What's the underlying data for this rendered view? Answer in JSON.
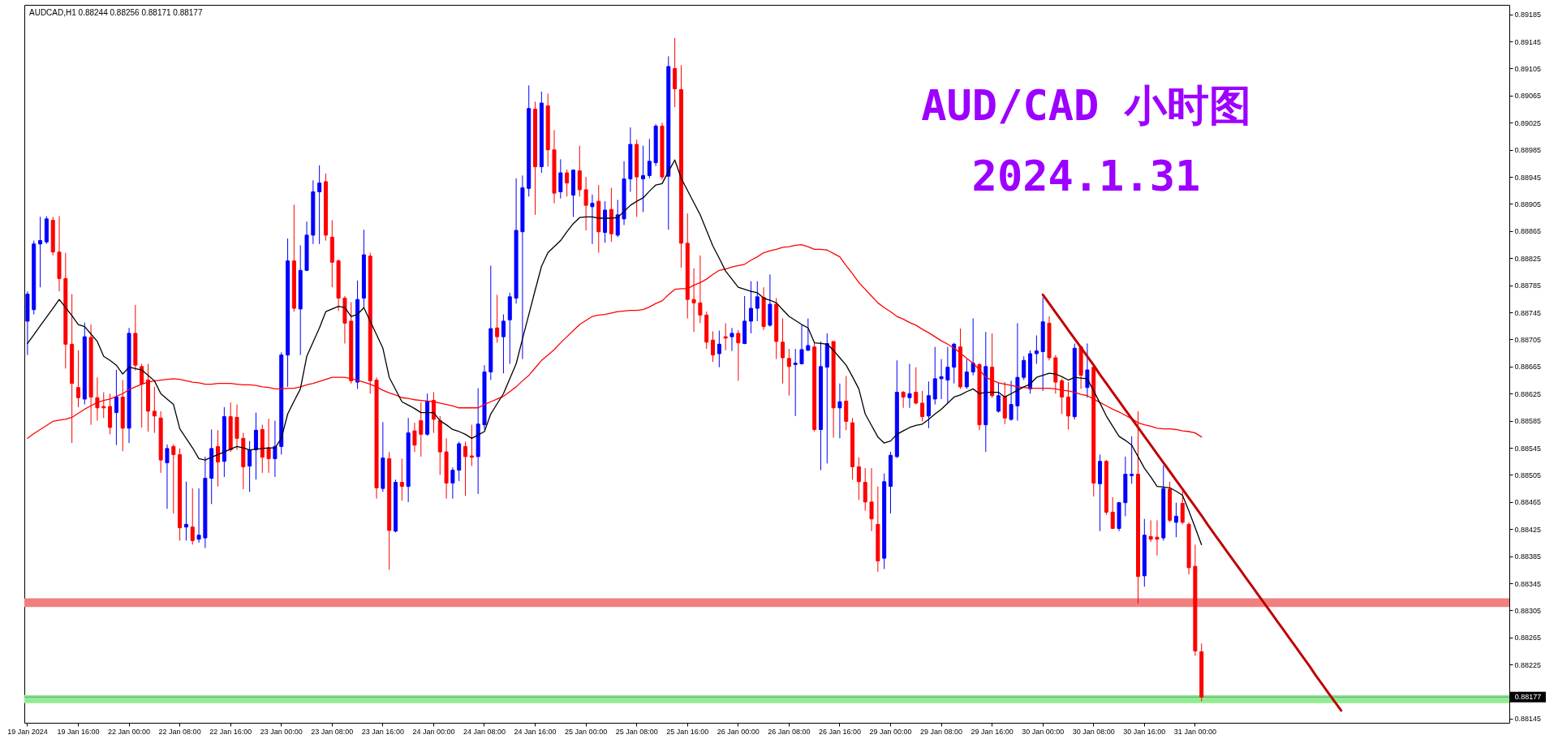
{
  "chart_data": {
    "type": "candlestick",
    "title": "AUD/CAD 小时图",
    "subtitle": "2024.1.31",
    "annotations": [
      "AUDCAD,H1 0.88244 0.88256 0.88171 0.88177"
    ],
    "categories": [
      "19 Jan 2024",
      null,
      null,
      null,
      null,
      null,
      null,
      null,
      "19 Jan 16:00",
      null,
      null,
      null,
      null,
      null,
      null,
      null,
      "22 Jan 00:00",
      null,
      null,
      null,
      null,
      null,
      null,
      null,
      "22 Jan 08:00",
      null,
      null,
      null,
      null,
      null,
      null,
      null,
      "22 Jan 16:00",
      null,
      null,
      null,
      null,
      null,
      null,
      null,
      "23 Jan 00:00",
      null,
      null,
      null,
      null,
      null,
      null,
      null,
      "23 Jan 08:00",
      null,
      null,
      null,
      null,
      null,
      null,
      null,
      "23 Jan 16:00",
      null,
      null,
      null,
      null,
      null,
      null,
      null,
      "24 Jan 00:00",
      null,
      null,
      null,
      null,
      null,
      null,
      null,
      "24 Jan 08:00",
      null,
      null,
      null,
      null,
      null,
      null,
      null,
      "24 Jan 16:00",
      null,
      null,
      null,
      null,
      null,
      null,
      null,
      "25 Jan 00:00",
      null,
      null,
      null,
      null,
      null,
      null,
      null,
      "25 Jan 08:00",
      null,
      null,
      null,
      null,
      null,
      null,
      null,
      "25 Jan 16:00",
      null,
      null,
      null,
      null,
      null,
      null,
      null,
      "26 Jan 00:00",
      null,
      null,
      null,
      null,
      null,
      null,
      null,
      "26 Jan 08:00",
      null,
      null,
      null,
      null,
      null,
      null,
      null,
      "26 Jan 16:00",
      null,
      null,
      null,
      null,
      null,
      null,
      null,
      "29 Jan 00:00",
      null,
      null,
      null,
      null,
      null,
      null,
      null,
      "29 Jan 08:00",
      null,
      null,
      null,
      null,
      null,
      null,
      null,
      "29 Jan 16:00",
      null,
      null,
      null,
      null,
      null,
      null,
      null,
      "30 Jan 00:00",
      null,
      null,
      null,
      null,
      null,
      null,
      null,
      "30 Jan 08:00",
      null,
      null,
      null,
      null,
      null,
      null,
      null,
      "30 Jan 16:00",
      null,
      null,
      null,
      null,
      null,
      null,
      null,
      "31 Jan 00:00",
      null,
      null,
      null,
      null,
      null,
      null,
      null,
      null,
      null,
      null,
      null,
      null,
      null,
      null,
      null,
      null,
      null,
      null,
      null,
      null,
      null,
      null,
      null,
      null,
      null,
      null,
      null,
      null,
      null,
      null,
      null,
      null,
      null,
      null,
      null,
      null,
      null,
      null,
      null,
      null,
      null,
      null,
      null,
      null,
      null,
      null,
      null,
      null,
      null
    ],
    "ohlc": [
      [
        0.88732,
        0.88776,
        0.88682,
        0.88772
      ],
      [
        0.88749,
        0.88851,
        0.88742,
        0.88846
      ],
      [
        0.88846,
        0.88886,
        0.88782,
        0.88851
      ],
      [
        0.88849,
        0.88887,
        0.88846,
        0.88883
      ],
      [
        0.88881,
        0.88886,
        0.88829,
        0.88834
      ],
      [
        0.88834,
        0.88887,
        0.88776,
        0.88795
      ],
      [
        0.88795,
        0.88833,
        0.88662,
        0.88698
      ],
      [
        0.88698,
        0.88772,
        0.88552,
        0.8864
      ],
      [
        0.88634,
        0.88689,
        0.88605,
        0.88619
      ],
      [
        0.88617,
        0.8873,
        0.88609,
        0.88709
      ],
      [
        0.88708,
        0.88727,
        0.88579,
        0.8862
      ],
      [
        0.88619,
        0.88649,
        0.88585,
        0.88604
      ],
      [
        0.88606,
        0.88627,
        0.88589,
        0.88604
      ],
      [
        0.88606,
        0.88625,
        0.88565,
        0.88575
      ],
      [
        0.88597,
        0.8866,
        0.88549,
        0.8862
      ],
      [
        0.8862,
        0.88645,
        0.8854,
        0.88574
      ],
      [
        0.88574,
        0.88722,
        0.88552,
        0.88714
      ],
      [
        0.88714,
        0.88756,
        0.88659,
        0.88667
      ],
      [
        0.88665,
        0.88669,
        0.88575,
        0.88639
      ],
      [
        0.88645,
        0.88669,
        0.88569,
        0.88599
      ],
      [
        0.88599,
        0.88635,
        0.88567,
        0.88592
      ],
      [
        0.88589,
        0.88599,
        0.88508,
        0.88527
      ],
      [
        0.88523,
        0.8855,
        0.88455,
        0.88544
      ],
      [
        0.88547,
        0.8855,
        0.88448,
        0.88535
      ],
      [
        0.88535,
        0.88544,
        0.88408,
        0.88427
      ],
      [
        0.88428,
        0.88495,
        0.88408,
        0.88432
      ],
      [
        0.88428,
        0.88485,
        0.88402,
        0.88408
      ],
      [
        0.8841,
        0.88485,
        0.88405,
        0.88416
      ],
      [
        0.88412,
        0.88532,
        0.88397,
        0.885
      ],
      [
        0.885,
        0.88572,
        0.88462,
        0.88544
      ],
      [
        0.88547,
        0.88571,
        0.88488,
        0.88524
      ],
      [
        0.88525,
        0.88605,
        0.88502,
        0.88591
      ],
      [
        0.88591,
        0.88612,
        0.88539,
        0.88542
      ],
      [
        0.8859,
        0.88609,
        0.88542,
        0.88559
      ],
      [
        0.88559,
        0.88567,
        0.88484,
        0.88517
      ],
      [
        0.88518,
        0.88555,
        0.8848,
        0.88542
      ],
      [
        0.88542,
        0.88597,
        0.88498,
        0.88571
      ],
      [
        0.88572,
        0.88579,
        0.88508,
        0.88531
      ],
      [
        0.88545,
        0.88588,
        0.88508,
        0.88529
      ],
      [
        0.88529,
        0.88585,
        0.88502,
        0.88547
      ],
      [
        0.88547,
        0.88686,
        0.88535,
        0.88682
      ],
      [
        0.88682,
        0.88854,
        0.88635,
        0.88821
      ],
      [
        0.88821,
        0.88904,
        0.88746,
        0.88751
      ],
      [
        0.8875,
        0.88844,
        0.88682,
        0.88807
      ],
      [
        0.88807,
        0.88879,
        0.88806,
        0.88859
      ],
      [
        0.88859,
        0.8894,
        0.88846,
        0.88923
      ],
      [
        0.88923,
        0.88962,
        0.88846,
        0.88936
      ],
      [
        0.88938,
        0.8895,
        0.88851,
        0.88859
      ],
      [
        0.88856,
        0.88881,
        0.88782,
        0.88819
      ],
      [
        0.88821,
        0.88823,
        0.88747,
        0.88766
      ],
      [
        0.88766,
        0.88769,
        0.88699,
        0.88729
      ],
      [
        0.88732,
        0.8876,
        0.8864,
        0.88644
      ],
      [
        0.88642,
        0.88792,
        0.88632,
        0.88764
      ],
      [
        0.88766,
        0.88867,
        0.88752,
        0.8883
      ],
      [
        0.88828,
        0.88833,
        0.88625,
        0.88644
      ],
      [
        0.88645,
        0.88649,
        0.8847,
        0.88486
      ],
      [
        0.88485,
        0.88583,
        0.8848,
        0.8853
      ],
      [
        0.88529,
        0.88539,
        0.88365,
        0.88423
      ],
      [
        0.88422,
        0.88498,
        0.8842,
        0.88494
      ],
      [
        0.88494,
        0.88529,
        0.88467,
        0.88488
      ],
      [
        0.88488,
        0.88589,
        0.88465,
        0.88567
      ],
      [
        0.8857,
        0.88582,
        0.88539,
        0.88549
      ],
      [
        0.88585,
        0.88612,
        0.88532,
        0.88565
      ],
      [
        0.88565,
        0.88625,
        0.88563,
        0.88614
      ],
      [
        0.88615,
        0.88627,
        0.88567,
        0.88587
      ],
      [
        0.88585,
        0.88592,
        0.88505,
        0.88539
      ],
      [
        0.88539,
        0.88559,
        0.8847,
        0.88493
      ],
      [
        0.88493,
        0.88516,
        0.8847,
        0.88512
      ],
      [
        0.88512,
        0.88554,
        0.88496,
        0.88551
      ],
      [
        0.88547,
        0.88554,
        0.88474,
        0.88532
      ],
      [
        0.88533,
        0.88579,
        0.88518,
        0.88531
      ],
      [
        0.88532,
        0.88633,
        0.88477,
        0.8858
      ],
      [
        0.88579,
        0.88667,
        0.88572,
        0.88657
      ],
      [
        0.88657,
        0.88814,
        0.88645,
        0.88721
      ],
      [
        0.88722,
        0.88771,
        0.887,
        0.88709
      ],
      [
        0.88709,
        0.88742,
        0.88655,
        0.88732
      ],
      [
        0.88734,
        0.88774,
        0.88669,
        0.88768
      ],
      [
        0.88766,
        0.88943,
        0.88758,
        0.88866
      ],
      [
        0.88864,
        0.88947,
        0.88676,
        0.88929
      ],
      [
        0.88928,
        0.8908,
        0.88916,
        0.89046
      ],
      [
        0.89045,
        0.89056,
        0.88889,
        0.8896
      ],
      [
        0.8896,
        0.89071,
        0.88951,
        0.89054
      ],
      [
        0.8905,
        0.89068,
        0.8896,
        0.88985
      ],
      [
        0.88985,
        0.89014,
        0.88906,
        0.88921
      ],
      [
        0.88923,
        0.88971,
        0.88913,
        0.88951
      ],
      [
        0.88951,
        0.88956,
        0.88916,
        0.88936
      ],
      [
        0.88918,
        0.88956,
        0.88886,
        0.88955
      ],
      [
        0.88954,
        0.88991,
        0.88916,
        0.88926
      ],
      [
        0.88926,
        0.88945,
        0.88866,
        0.88903
      ],
      [
        0.88901,
        0.88919,
        0.88846,
        0.88906
      ],
      [
        0.88909,
        0.88933,
        0.88833,
        0.88864
      ],
      [
        0.88863,
        0.88909,
        0.88848,
        0.88896
      ],
      [
        0.88897,
        0.88929,
        0.88849,
        0.88861
      ],
      [
        0.88859,
        0.88911,
        0.88856,
        0.88889
      ],
      [
        0.88883,
        0.88968,
        0.88874,
        0.88942
      ],
      [
        0.88942,
        0.89018,
        0.88923,
        0.88993
      ],
      [
        0.88993,
        0.89,
        0.88886,
        0.88945
      ],
      [
        0.88942,
        0.88991,
        0.88893,
        0.88947
      ],
      [
        0.88947,
        0.89001,
        0.88943,
        0.88968
      ],
      [
        0.88966,
        0.89023,
        0.88961,
        0.8902
      ],
      [
        0.8902,
        0.89025,
        0.88941,
        0.88945
      ],
      [
        0.88946,
        0.89123,
        0.88867,
        0.89108
      ],
      [
        0.89105,
        0.8915,
        0.89048,
        0.89075
      ],
      [
        0.89074,
        0.8911,
        0.88811,
        0.88847
      ],
      [
        0.88847,
        0.88891,
        0.88736,
        0.88764
      ],
      [
        0.88764,
        0.8881,
        0.88716,
        0.88759
      ],
      [
        0.88759,
        0.88829,
        0.88729,
        0.88741
      ],
      [
        0.88741,
        0.88746,
        0.88691,
        0.88701
      ],
      [
        0.88704,
        0.88717,
        0.88672,
        0.88682
      ],
      [
        0.88684,
        0.88718,
        0.88664,
        0.88698
      ],
      [
        0.88709,
        0.88729,
        0.88689,
        0.88707
      ],
      [
        0.88709,
        0.88722,
        0.88688,
        0.88714
      ],
      [
        0.88714,
        0.88719,
        0.88644,
        0.887
      ],
      [
        0.88699,
        0.88769,
        0.88698,
        0.88732
      ],
      [
        0.88732,
        0.88791,
        0.88714,
        0.88751
      ],
      [
        0.88751,
        0.88791,
        0.88732,
        0.88768
      ],
      [
        0.88767,
        0.88782,
        0.88719,
        0.88724
      ],
      [
        0.88726,
        0.88801,
        0.88724,
        0.88757
      ],
      [
        0.88757,
        0.88766,
        0.88676,
        0.88702
      ],
      [
        0.88701,
        0.88736,
        0.8864,
        0.88678
      ],
      [
        0.88677,
        0.88691,
        0.88622,
        0.88665
      ],
      [
        0.88668,
        0.88691,
        0.88592,
        0.8867
      ],
      [
        0.88669,
        0.88726,
        0.88668,
        0.8869
      ],
      [
        0.88689,
        0.88736,
        0.88688,
        0.88696
      ],
      [
        0.88694,
        0.887,
        0.88569,
        0.88572
      ],
      [
        0.88572,
        0.88702,
        0.88512,
        0.88665
      ],
      [
        0.88664,
        0.88714,
        0.88522,
        0.88699
      ],
      [
        0.88702,
        0.88702,
        0.8856,
        0.88604
      ],
      [
        0.88604,
        0.8864,
        0.88559,
        0.88613
      ],
      [
        0.88614,
        0.88651,
        0.88571,
        0.88584
      ],
      [
        0.88582,
        0.88589,
        0.88498,
        0.88517
      ],
      [
        0.88517,
        0.88531,
        0.88468,
        0.88495
      ],
      [
        0.88494,
        0.88515,
        0.88452,
        0.88465
      ],
      [
        0.88465,
        0.88515,
        0.88422,
        0.8844
      ],
      [
        0.88432,
        0.88488,
        0.88362,
        0.88378
      ],
      [
        0.88382,
        0.88507,
        0.88366,
        0.88495
      ],
      [
        0.88488,
        0.88539,
        0.88448,
        0.88534
      ],
      [
        0.88532,
        0.88674,
        0.8853,
        0.88627
      ],
      [
        0.88627,
        0.88629,
        0.88604,
        0.8862
      ],
      [
        0.88619,
        0.88669,
        0.88604,
        0.88625
      ],
      [
        0.88627,
        0.88664,
        0.88609,
        0.88611
      ],
      [
        0.88611,
        0.88629,
        0.88584,
        0.88591
      ],
      [
        0.88592,
        0.88643,
        0.88574,
        0.88622
      ],
      [
        0.88617,
        0.88694,
        0.88609,
        0.88647
      ],
      [
        0.88647,
        0.88676,
        0.88617,
        0.8865
      ],
      [
        0.88645,
        0.88694,
        0.88611,
        0.88664
      ],
      [
        0.88664,
        0.887,
        0.8864,
        0.88698
      ],
      [
        0.88694,
        0.88721,
        0.88632,
        0.88635
      ],
      [
        0.88635,
        0.88676,
        0.88632,
        0.88657
      ],
      [
        0.88657,
        0.88736,
        0.88652,
        0.8867
      ],
      [
        0.88668,
        0.8867,
        0.88571,
        0.88579
      ],
      [
        0.88579,
        0.88716,
        0.88539,
        0.88665
      ],
      [
        0.88664,
        0.88714,
        0.88619,
        0.88622
      ],
      [
        0.88599,
        0.88641,
        0.88597,
        0.88622
      ],
      [
        0.88621,
        0.88642,
        0.8858,
        0.88589
      ],
      [
        0.88587,
        0.88644,
        0.88585,
        0.88609
      ],
      [
        0.88607,
        0.88729,
        0.88585,
        0.88649
      ],
      [
        0.88649,
        0.8868,
        0.88645,
        0.88674
      ],
      [
        0.88632,
        0.88689,
        0.88625,
        0.88684
      ],
      [
        0.88684,
        0.88711,
        0.88669,
        0.88688
      ],
      [
        0.88687,
        0.88767,
        0.88629,
        0.88731
      ],
      [
        0.88729,
        0.88739,
        0.88674,
        0.88678
      ],
      [
        0.88678,
        0.88682,
        0.88625,
        0.88642
      ],
      [
        0.88644,
        0.88647,
        0.88595,
        0.8862
      ],
      [
        0.8862,
        0.88642,
        0.88572,
        0.88592
      ],
      [
        0.88591,
        0.88699,
        0.88587,
        0.88692
      ],
      [
        0.88694,
        0.88696,
        0.88632,
        0.88652
      ],
      [
        0.88634,
        0.88699,
        0.88619,
        0.8866
      ],
      [
        0.88664,
        0.88669,
        0.88473,
        0.88493
      ],
      [
        0.88492,
        0.88535,
        0.88422,
        0.88525
      ],
      [
        0.88525,
        0.88527,
        0.88446,
        0.8845
      ],
      [
        0.8845,
        0.88472,
        0.88425,
        0.88426
      ],
      [
        0.88426,
        0.88465,
        0.88422,
        0.88464
      ],
      [
        0.88464,
        0.88532,
        0.88444,
        0.88506
      ],
      [
        0.88504,
        0.88562,
        0.88492,
        0.88506
      ],
      [
        0.88506,
        0.88599,
        0.88315,
        0.88355
      ],
      [
        0.88356,
        0.8844,
        0.8834,
        0.88416
      ],
      [
        0.88414,
        0.88438,
        0.88406,
        0.8841
      ],
      [
        0.88413,
        0.88438,
        0.88386,
        0.8841
      ],
      [
        0.88412,
        0.88519,
        0.88408,
        0.88485
      ],
      [
        0.88484,
        0.88495,
        0.88435,
        0.88438
      ],
      [
        0.88435,
        0.88464,
        0.88413,
        0.88444
      ],
      [
        0.88463,
        0.88482,
        0.88432,
        0.88435
      ],
      [
        0.88432,
        0.88435,
        0.88358,
        0.88368
      ],
      [
        0.8837,
        0.88402,
        0.88238,
        0.88245
      ],
      [
        0.88244,
        0.88256,
        0.88171,
        0.88177
      ],
      null,
      null,
      null,
      null,
      null,
      null,
      null,
      null,
      null,
      null,
      null,
      null,
      null,
      null,
      null,
      null,
      null,
      null,
      null,
      null,
      null,
      null,
      null,
      null,
      null,
      null,
      null,
      null,
      null,
      null,
      null,
      null,
      null,
      null,
      null,
      null,
      null,
      null,
      null,
      null,
      null,
      null,
      null,
      null,
      null,
      null,
      null,
      null
    ],
    "colors": [
      "#0000ff",
      "#0000ff",
      "#0000ff",
      "#0000ff",
      "#ff0000",
      "#ff0000",
      "#ff0000",
      "#ff0000",
      "#ff0000",
      "#0000ff",
      "#ff0000",
      "#ff0000",
      "#ff0000",
      "#ff0000",
      "#0000ff",
      "#ff0000",
      "#0000ff",
      "#ff0000",
      "#ff0000",
      "#ff0000",
      "#ff0000",
      "#ff0000",
      "#0000ff",
      "#ff0000",
      "#ff0000",
      "#0000ff",
      "#ff0000",
      "#0000ff",
      "#0000ff",
      "#0000ff",
      "#ff0000",
      "#0000ff",
      "#ff0000",
      "#ff0000",
      "#ff0000",
      "#0000ff",
      "#0000ff",
      "#ff0000",
      "#ff0000",
      "#0000ff",
      "#0000ff",
      "#0000ff",
      "#ff0000",
      "#0000ff",
      "#0000ff",
      "#0000ff",
      "#0000ff",
      "#ff0000",
      "#ff0000",
      "#ff0000",
      "#ff0000",
      "#ff0000",
      "#0000ff",
      "#0000ff",
      "#ff0000",
      "#ff0000",
      "#0000ff",
      "#ff0000",
      "#0000ff",
      "#ff0000",
      "#0000ff",
      "#ff0000",
      "#ff0000",
      "#0000ff",
      "#ff0000",
      "#ff0000",
      "#ff0000",
      "#0000ff",
      "#0000ff",
      "#ff0000",
      "#ff0000",
      "#0000ff",
      "#0000ff",
      "#0000ff",
      "#ff0000",
      "#0000ff",
      "#0000ff",
      "#0000ff",
      "#0000ff",
      "#0000ff",
      "#ff0000",
      "#0000ff",
      "#ff0000",
      "#ff0000",
      "#0000ff",
      "#ff0000",
      "#0000ff",
      "#ff0000",
      "#ff0000",
      "#0000ff",
      "#ff0000",
      "#0000ff",
      "#ff0000",
      "#0000ff",
      "#0000ff",
      "#0000ff",
      "#ff0000",
      "#0000ff",
      "#0000ff",
      "#0000ff",
      "#ff0000",
      "#0000ff",
      "#ff0000",
      "#ff0000",
      "#ff0000",
      "#ff0000",
      "#ff0000",
      "#ff0000",
      "#ff0000",
      "#0000ff",
      "#ff0000",
      "#0000ff",
      "#ff0000",
      "#0000ff",
      "#0000ff",
      "#0000ff",
      "#ff0000",
      "#0000ff",
      "#ff0000",
      "#ff0000",
      "#ff0000",
      "#0000ff",
      "#0000ff",
      "#0000ff",
      "#ff0000",
      "#0000ff",
      "#0000ff",
      "#ff0000",
      "#0000ff",
      "#ff0000",
      "#ff0000",
      "#ff0000",
      "#ff0000",
      "#ff0000",
      "#ff0000",
      "#0000ff",
      "#0000ff",
      "#0000ff",
      "#ff0000",
      "#0000ff",
      "#ff0000",
      "#ff0000",
      "#0000ff",
      "#0000ff",
      "#0000ff",
      "#0000ff",
      "#0000ff",
      "#ff0000",
      "#0000ff",
      "#0000ff",
      "#ff0000",
      "#0000ff",
      "#ff0000",
      "#0000ff",
      "#ff0000",
      "#0000ff",
      "#0000ff",
      "#0000ff",
      "#0000ff",
      "#0000ff",
      "#0000ff",
      "#ff0000",
      "#ff0000",
      "#ff0000",
      "#ff0000",
      "#0000ff",
      "#ff0000",
      "#0000ff",
      "#ff0000",
      "#0000ff",
      "#ff0000",
      "#ff0000",
      "#0000ff",
      "#0000ff",
      "#0000ff",
      "#ff0000",
      "#0000ff",
      "#ff0000",
      "#ff0000",
      "#0000ff",
      "#ff0000",
      "#0000ff",
      "#ff0000",
      "#ff0000",
      "#ff0000",
      "#ff0000",
      null,
      null,
      null,
      null,
      null,
      null,
      null,
      null,
      null,
      null,
      null,
      null,
      null,
      null,
      null,
      null,
      null,
      null,
      null,
      null,
      null,
      null,
      null,
      null,
      null,
      null,
      null,
      null,
      null,
      null,
      null,
      null,
      null,
      null,
      null,
      null,
      null,
      null,
      null,
      null,
      null,
      null,
      null,
      null,
      null,
      null,
      null,
      null
    ],
    "ylim": [
      0.88139,
      0.89199
    ],
    "yticks": [
      0.88145,
      0.88225,
      0.88265,
      0.88305,
      0.88345,
      0.88385,
      0.88425,
      0.88465,
      0.88505,
      0.88545,
      0.88585,
      0.88625,
      0.88665,
      0.88705,
      0.88745,
      0.88785,
      0.88825,
      0.88865,
      0.88905,
      0.88945,
      0.88985,
      0.89025,
      0.89065,
      0.89105,
      0.89145,
      0.89185
    ],
    "series": [
      {
        "type": "line",
        "color": "#ff0000",
        "values": [
          0.88559,
          0.88566,
          0.88572,
          0.88578,
          0.88584,
          0.88586,
          0.88587,
          0.8859,
          0.88596,
          0.88602,
          0.88607,
          0.88612,
          0.88615,
          0.88617,
          0.88621,
          0.88625,
          0.88631,
          0.88635,
          0.88639,
          0.88642,
          0.88644,
          0.88645,
          0.88646,
          0.88647,
          0.88646,
          0.88644,
          0.88642,
          0.88641,
          0.88639,
          0.88639,
          0.8864,
          0.8864,
          0.8864,
          0.88639,
          0.88638,
          0.88638,
          0.88637,
          0.88635,
          0.88634,
          0.88632,
          0.88632,
          0.88633,
          0.88633,
          0.88635,
          0.88638,
          0.8864,
          0.88643,
          0.88646,
          0.88649,
          0.88649,
          0.88649,
          0.88647,
          0.88645,
          0.88642,
          0.88639,
          0.88635,
          0.8863,
          0.88626,
          0.88623,
          0.88619,
          0.88618,
          0.88616,
          0.88615,
          0.88614,
          0.88613,
          0.88611,
          0.88609,
          0.88607,
          0.88604,
          0.88604,
          0.88604,
          0.88604,
          0.88609,
          0.88613,
          0.88617,
          0.88621,
          0.88628,
          0.88635,
          0.88644,
          0.88652,
          0.88663,
          0.88674,
          0.88682,
          0.8869,
          0.887,
          0.88709,
          0.88718,
          0.88727,
          0.88733,
          0.88739,
          0.88741,
          0.88742,
          0.88744,
          0.88746,
          0.88747,
          0.88748,
          0.88748,
          0.88749,
          0.88753,
          0.88758,
          0.88762,
          0.88771,
          0.88779,
          0.8878,
          0.8878,
          0.88785,
          0.88789,
          0.88794,
          0.88801,
          0.88807,
          0.88809,
          0.88812,
          0.88814,
          0.88816,
          0.88822,
          0.88827,
          0.88833,
          0.88836,
          0.88838,
          0.88841,
          0.88842,
          0.88844,
          0.88845,
          0.88842,
          0.88838,
          0.88838,
          0.88837,
          0.88832,
          0.88827,
          0.88814,
          0.88802,
          0.88789,
          0.88779,
          0.88769,
          0.88759,
          0.88752,
          0.88746,
          0.88739,
          0.88735,
          0.8873,
          0.88726,
          0.8872,
          0.88715,
          0.88709,
          0.88703,
          0.88698,
          0.88692,
          0.88685,
          0.88677,
          0.8867,
          0.8866,
          0.88649,
          0.88645,
          0.88641,
          0.88639,
          0.88637,
          0.88635,
          0.88634,
          0.88633,
          0.88633,
          0.88633,
          0.88633,
          0.88632,
          0.8863,
          0.88629,
          0.88627,
          0.88624,
          0.88622,
          0.88617,
          0.88612,
          0.88607,
          0.88602,
          0.88598,
          0.88593,
          0.88588,
          0.88582,
          0.88579,
          0.88577,
          0.88574,
          0.88573,
          0.88573,
          0.88572,
          0.8857,
          0.88569,
          0.88567,
          0.88561,
          null,
          null,
          null,
          null,
          null,
          null,
          null,
          null,
          null,
          null,
          null,
          null,
          null,
          null,
          null,
          null,
          null,
          null,
          null,
          null,
          null,
          null,
          null,
          null,
          null,
          null,
          null,
          null,
          null,
          null,
          null,
          null,
          null,
          null,
          null,
          null,
          null,
          null,
          null,
          null,
          null,
          null,
          null,
          null,
          null,
          null,
          null,
          null
        ]
      },
      {
        "type": "line",
        "color": "#000000",
        "values": [
          0.88699,
          0.88712,
          0.88725,
          0.88738,
          0.88751,
          0.88764,
          0.88752,
          0.8874,
          0.88727,
          0.88724,
          0.88713,
          0.88702,
          0.8868,
          0.88674,
          0.88667,
          0.88654,
          0.88664,
          0.88662,
          0.8866,
          0.88652,
          0.88644,
          0.88625,
          0.88617,
          0.88609,
          0.88573,
          0.88559,
          0.88545,
          0.88529,
          0.88527,
          0.88531,
          0.88535,
          0.88539,
          0.88543,
          0.88547,
          0.88545,
          0.88542,
          0.88543,
          0.88544,
          0.88545,
          0.88545,
          0.88559,
          0.88595,
          0.88614,
          0.88632,
          0.8868,
          0.88701,
          0.88722,
          0.88746,
          0.8875,
          0.88754,
          0.88752,
          0.88739,
          0.88742,
          0.88752,
          0.88732,
          0.88712,
          0.88692,
          0.88649,
          0.88631,
          0.88613,
          0.88608,
          0.88603,
          0.88597,
          0.88597,
          0.88597,
          0.88585,
          0.88579,
          0.88572,
          0.88569,
          0.88565,
          0.88559,
          0.88564,
          0.88569,
          0.88595,
          0.8861,
          0.88625,
          0.88647,
          0.88669,
          0.88706,
          0.88742,
          0.88778,
          0.88813,
          0.88833,
          0.88842,
          0.88851,
          0.88864,
          0.88876,
          0.88885,
          0.88886,
          0.88886,
          0.88884,
          0.88884,
          0.88884,
          0.88885,
          0.88894,
          0.88903,
          0.88909,
          0.88914,
          0.88924,
          0.88933,
          0.88935,
          0.88953,
          0.8897,
          0.88943,
          0.88925,
          0.88907,
          0.88889,
          0.88866,
          0.88843,
          0.88825,
          0.88806,
          0.88794,
          0.88782,
          0.88779,
          0.88776,
          0.88774,
          0.88766,
          0.88763,
          0.88759,
          0.88749,
          0.88739,
          0.88733,
          0.88727,
          0.88722,
          0.887,
          0.88699,
          0.88698,
          0.88689,
          0.88678,
          0.88667,
          0.8865,
          0.88632,
          0.88595,
          0.88578,
          0.88561,
          0.88552,
          0.88555,
          0.88565,
          0.8857,
          0.88575,
          0.88578,
          0.8858,
          0.88587,
          0.88595,
          0.88602,
          0.88611,
          0.8862,
          0.88623,
          0.88628,
          0.88632,
          0.88625,
          0.88627,
          0.88627,
          0.88627,
          0.8862,
          0.88625,
          0.8863,
          0.88635,
          0.88639,
          0.88649,
          0.88652,
          0.88655,
          0.88654,
          0.8865,
          0.88645,
          0.88649,
          0.88648,
          0.88647,
          0.88629,
          0.88611,
          0.88592,
          0.88577,
          0.88562,
          0.88556,
          0.88549,
          0.88532,
          0.88515,
          0.88502,
          0.88488,
          0.88487,
          0.88486,
          0.88481,
          0.88475,
          0.88452,
          0.88427,
          0.88402,
          null,
          null,
          null,
          null,
          null,
          null,
          null,
          null,
          null,
          null,
          null,
          null,
          null,
          null,
          null,
          null,
          null,
          null,
          null,
          null,
          null,
          null,
          null,
          null,
          null,
          null,
          null,
          null,
          null,
          null,
          null,
          null,
          null,
          null,
          null,
          null,
          null,
          null,
          null,
          null,
          null,
          null,
          null,
          null,
          null,
          null,
          null,
          null
        ]
      },
      {
        "type": "line",
        "color": "#c00000",
        "values": [
          null,
          null,
          null,
          null,
          null,
          null,
          null,
          null,
          null,
          null,
          null,
          null,
          null,
          null,
          null,
          null,
          null,
          null,
          null,
          null,
          null,
          null,
          null,
          null,
          null,
          null,
          null,
          null,
          null,
          null,
          null,
          null,
          null,
          null,
          null,
          null,
          null,
          null,
          null,
          null,
          null,
          null,
          null,
          null,
          null,
          null,
          null,
          null,
          null,
          null,
          null,
          null,
          null,
          null,
          null,
          null,
          null,
          null,
          null,
          null,
          null,
          null,
          null,
          null,
          null,
          null,
          null,
          null,
          null,
          null,
          null,
          null,
          null,
          null,
          null,
          null,
          null,
          null,
          null,
          null,
          null,
          null,
          null,
          null,
          null,
          null,
          null,
          null,
          null,
          null,
          null,
          null,
          null,
          null,
          null,
          null,
          null,
          null,
          null,
          null,
          null,
          null,
          null,
          null,
          null,
          null,
          null,
          null,
          null,
          null,
          null,
          null,
          null,
          null,
          null,
          null,
          null,
          null,
          null,
          null,
          null,
          null,
          null,
          null,
          null,
          null,
          null,
          null,
          null,
          null,
          null,
          null,
          null,
          null,
          null,
          null,
          null,
          null,
          null,
          null,
          null,
          null,
          null,
          null,
          null,
          null,
          null,
          null,
          null,
          null,
          null,
          null,
          null,
          null,
          null,
          null,
          null,
          null,
          null,
          null,
          0.88771,
          0.88758,
          0.88745,
          0.88732,
          0.88719,
          0.88706,
          0.88693,
          0.8868,
          0.88667,
          0.88653,
          0.8864,
          0.88627,
          0.88614,
          0.88601,
          0.88588,
          0.88575,
          0.88562,
          0.88549,
          0.88536,
          0.88523,
          0.8851,
          0.88497,
          0.88484,
          0.88471,
          0.88458,
          0.88445,
          0.88431,
          0.88418,
          0.88405,
          0.88392,
          0.88379,
          0.88366,
          0.88353,
          0.8834,
          0.88327,
          0.88314,
          0.88301,
          0.88288,
          0.88275,
          0.88262,
          0.88249,
          0.88236,
          0.88223,
          0.88209,
          0.88196,
          0.88183,
          0.8817,
          0.88157,
          null,
          null,
          null,
          null,
          null,
          null,
          null,
          null,
          null,
          null,
          null,
          null,
          null,
          null,
          null,
          null,
          null,
          null,
          null,
          null,
          null,
          null,
          null,
          null,
          null,
          null
        ]
      }
    ],
    "bands": [
      {
        "axis": "y",
        "from": 0.8831,
        "to": 0.88323,
        "color": "#f08080"
      },
      {
        "axis": "y",
        "from": 0.88168,
        "to": 0.8818,
        "color": "#90ee90"
      }
    ],
    "ref_lines": [
      {
        "axis": "y",
        "value": 0.88177,
        "label": "0.88177",
        "color": "#778899"
      }
    ]
  }
}
